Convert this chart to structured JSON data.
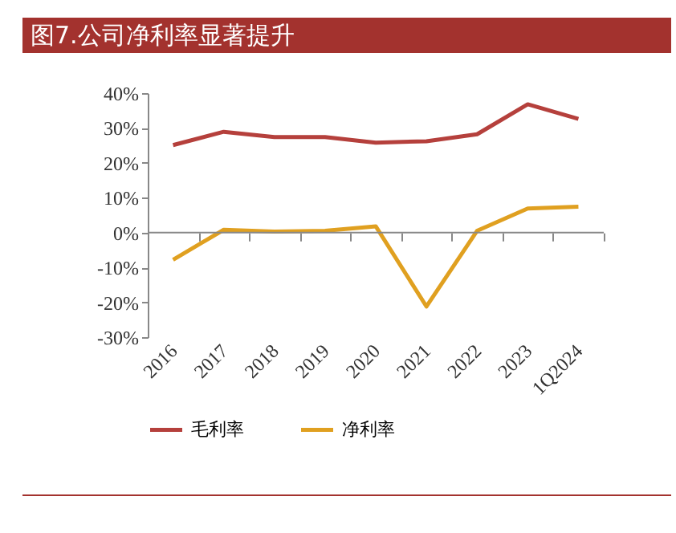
{
  "chart_data": {
    "type": "line",
    "title": "图7.公司净利率显著提升",
    "categories": [
      "2016",
      "2017",
      "2018",
      "2019",
      "2020",
      "2021",
      "2022",
      "2023",
      "1Q2024"
    ],
    "series": [
      {
        "name": "毛利率",
        "color": "#b5403c",
        "values": [
          25.1,
          28.9,
          27.4,
          27.4,
          25.8,
          26.2,
          28.2,
          36.8,
          32.6
        ]
      },
      {
        "name": "净利率",
        "color": "#e0a020",
        "values": [
          -7.8,
          0.8,
          0.3,
          0.5,
          1.8,
          -21.2,
          0.5,
          6.9,
          7.4
        ]
      }
    ],
    "ylim": [
      -30,
      40
    ],
    "yticks": [
      {
        "value": -30,
        "label": "-30%"
      },
      {
        "value": -20,
        "label": "-20%"
      },
      {
        "value": -10,
        "label": "-10%"
      },
      {
        "value": 0,
        "label": "0%"
      },
      {
        "value": 10,
        "label": "10%"
      },
      {
        "value": 20,
        "label": "20%"
      },
      {
        "value": 30,
        "label": "30%"
      },
      {
        "value": 40,
        "label": "40%"
      }
    ],
    "ref_lines": [
      {
        "axis": "y",
        "value": 0,
        "color": "#888888"
      }
    ],
    "grid": false,
    "legend": "bottom",
    "marker": "none",
    "line_style": "solid"
  }
}
